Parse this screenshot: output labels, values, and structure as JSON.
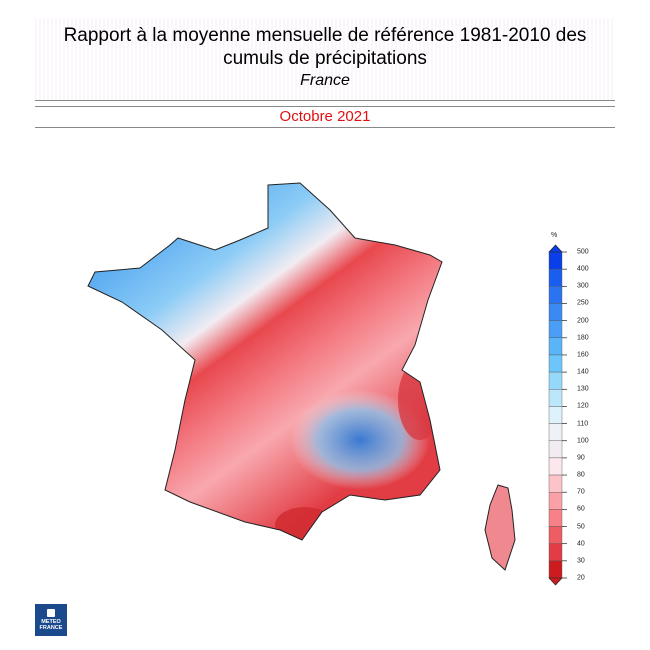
{
  "header": {
    "title": "Rapport à la moyenne mensuelle de référence 1981-2010 des cumuls de précipitations",
    "region": "France",
    "period": "Octobre 2021"
  },
  "legend": {
    "unit": "%",
    "labels": [
      "500",
      "400",
      "300",
      "250",
      "200",
      "180",
      "160",
      "140",
      "130",
      "120",
      "110",
      "100",
      "90",
      "80",
      "70",
      "60",
      "50",
      "40",
      "30",
      "20"
    ],
    "colors": [
      "#0a3ee8",
      "#1a5ef0",
      "#2a74f2",
      "#3a8af4",
      "#4a9ef6",
      "#5ab4f8",
      "#6cc6fa",
      "#96d8fa",
      "#bce6fa",
      "#def2fc",
      "#eef2f6",
      "#f2ecf2",
      "#fce8ec",
      "#fcc4c8",
      "#fca0a8",
      "#f88088",
      "#ee5c64",
      "#e23c44",
      "#cc1c20"
    ]
  },
  "logo": {
    "line1": "METEO",
    "line2": "FRANCE"
  }
}
